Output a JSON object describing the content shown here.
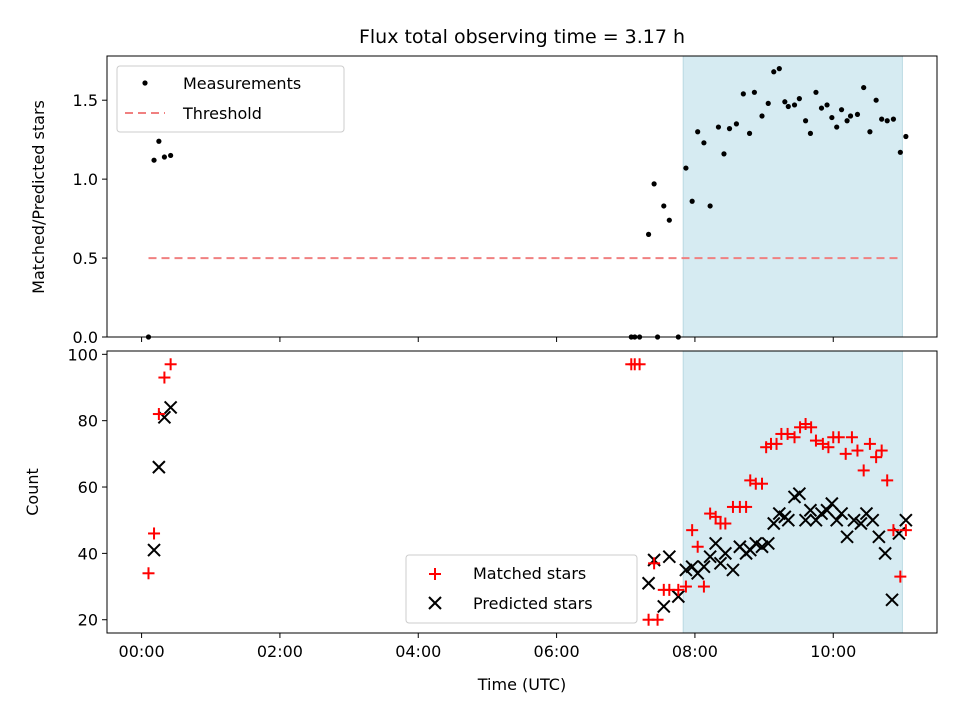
{
  "chart_data": [
    {
      "type": "scatter",
      "title": "Flux total observing time = 3.17 h",
      "ylabel": "Matched/Predicted stars",
      "xlabel": "",
      "xlim": [
        -0.5,
        11.5
      ],
      "ylim": [
        0,
        1.78
      ],
      "yticks": [
        0.0,
        0.5,
        1.0,
        1.5
      ],
      "ytick_labels": [
        "0.0",
        "0.5",
        "1.0",
        "1.5"
      ],
      "shaded_region": [
        7.83,
        11.0
      ],
      "legend": [
        "Measurements",
        "Threshold"
      ],
      "threshold": {
        "name": "Threshold",
        "x": [
          0.1,
          11.0
        ],
        "y": 0.5,
        "color": "#f08080"
      },
      "series": [
        {
          "name": "Measurements",
          "color": "#000000",
          "marker": "dot",
          "x": [
            0.1,
            0.18,
            0.25,
            0.33,
            0.42,
            7.08,
            7.13,
            7.2,
            7.33,
            7.41,
            7.46,
            7.55,
            7.63,
            7.76,
            7.87,
            7.96,
            8.04,
            8.13,
            8.22,
            8.34,
            8.42,
            8.5,
            8.6,
            8.7,
            8.79,
            8.86,
            8.97,
            9.06,
            9.14,
            9.22,
            9.3,
            9.35,
            9.44,
            9.51,
            9.6,
            9.67,
            9.75,
            9.83,
            9.91,
            9.98,
            10.05,
            10.12,
            10.2,
            10.25,
            10.35,
            10.44,
            10.53,
            10.62,
            10.7,
            10.78,
            10.87,
            10.97,
            11.05
          ],
          "y": [
            0.0,
            1.12,
            1.24,
            1.14,
            1.15,
            0.0,
            0.0,
            0.0,
            0.65,
            0.97,
            0.0,
            0.83,
            0.74,
            0.0,
            1.07,
            0.86,
            1.3,
            1.23,
            0.83,
            1.33,
            1.16,
            1.32,
            1.35,
            1.54,
            1.29,
            1.55,
            1.4,
            1.48,
            1.68,
            1.7,
            1.49,
            1.46,
            1.47,
            1.51,
            1.37,
            1.29,
            1.55,
            1.45,
            1.47,
            1.39,
            1.33,
            1.44,
            1.37,
            1.4,
            1.41,
            1.58,
            1.3,
            1.5,
            1.38,
            1.37,
            1.38,
            1.17,
            1.27
          ]
        }
      ]
    },
    {
      "type": "scatter",
      "title": "",
      "xlabel": "Time (UTC)",
      "ylabel": "Count",
      "xlim": [
        -0.5,
        11.5
      ],
      "ylim": [
        16,
        101
      ],
      "yticks": [
        20,
        40,
        60,
        80,
        100
      ],
      "ytick_labels": [
        "20",
        "40",
        "60",
        "80",
        "100"
      ],
      "xticks": [
        0,
        2,
        4,
        6,
        8,
        10
      ],
      "xtick_labels": [
        "00:00",
        "02:00",
        "04:00",
        "06:00",
        "08:00",
        "10:00"
      ],
      "shaded_region": [
        7.83,
        11.0
      ],
      "legend": [
        "Matched stars",
        "Predicted stars"
      ],
      "series": [
        {
          "name": "Matched stars",
          "color": "#ff0000",
          "marker": "plus",
          "x": [
            0.1,
            0.18,
            0.25,
            0.33,
            0.42,
            7.08,
            7.13,
            7.2,
            7.33,
            7.41,
            7.46,
            7.55,
            7.63,
            7.76,
            7.87,
            7.96,
            8.04,
            8.13,
            8.22,
            8.3,
            8.37,
            8.44,
            8.55,
            8.65,
            8.74,
            8.8,
            8.88,
            8.97,
            9.03,
            9.1,
            9.18,
            9.25,
            9.34,
            9.44,
            9.52,
            9.6,
            9.68,
            9.75,
            9.85,
            9.93,
            10.0,
            10.08,
            10.18,
            10.27,
            10.35,
            10.44,
            10.53,
            10.62,
            10.7,
            10.78,
            10.87,
            10.97,
            11.05
          ],
          "y": [
            34,
            46,
            82,
            93,
            97,
            97,
            97,
            97,
            20,
            37,
            20,
            29,
            29,
            29,
            30,
            47,
            42,
            30,
            52,
            51,
            49,
            49,
            54,
            54,
            54,
            62,
            61,
            61,
            72,
            73,
            73,
            76,
            76,
            75,
            78,
            79,
            78,
            74,
            73,
            72,
            75,
            75,
            70,
            75,
            71,
            65,
            73,
            69,
            71,
            62,
            47,
            33,
            47
          ]
        },
        {
          "name": "Predicted stars",
          "color": "#000000",
          "marker": "x",
          "x": [
            0.18,
            0.25,
            0.33,
            0.42,
            7.33,
            7.41,
            7.55,
            7.63,
            7.76,
            7.87,
            7.96,
            8.04,
            8.13,
            8.22,
            8.3,
            8.37,
            8.44,
            8.55,
            8.65,
            8.74,
            8.8,
            8.88,
            8.97,
            9.06,
            9.14,
            9.22,
            9.3,
            9.35,
            9.44,
            9.51,
            9.6,
            9.67,
            9.75,
            9.83,
            9.91,
            9.98,
            10.05,
            10.12,
            10.2,
            10.3,
            10.4,
            10.48,
            10.57,
            10.66,
            10.75,
            10.85,
            10.95,
            11.05
          ],
          "y": [
            41,
            66,
            81,
            84,
            31,
            38,
            24,
            39,
            27,
            35,
            36,
            34,
            36,
            39,
            43,
            37,
            40,
            35,
            42,
            40,
            41,
            43,
            42,
            43,
            49,
            52,
            51,
            50,
            57,
            58,
            50,
            53,
            50,
            52,
            53,
            55,
            50,
            52,
            45,
            50,
            49,
            52,
            50,
            45,
            40,
            26,
            46,
            50
          ]
        }
      ]
    }
  ]
}
